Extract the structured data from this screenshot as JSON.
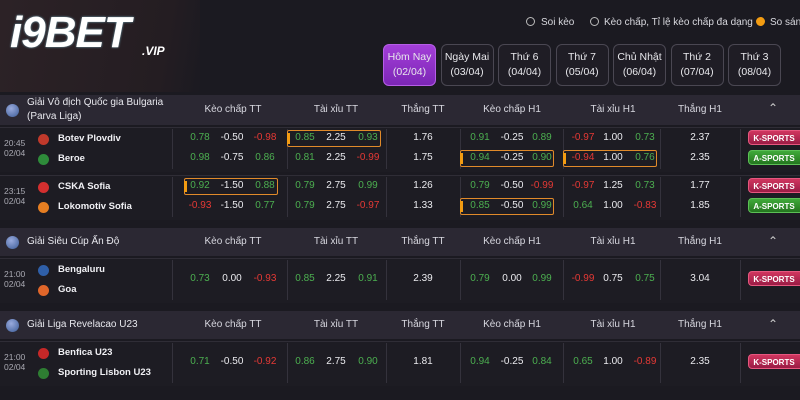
{
  "header": {
    "logo": "i9BET",
    "logo_suffix": ".VIP",
    "links": [
      "Soi kèo",
      "Kèo chấp, Tỉ lệ kèo chấp đa dạng",
      "So sánh"
    ]
  },
  "tabs": [
    {
      "label": "Hôm Nay",
      "date": "(02/04)",
      "active": true
    },
    {
      "label": "Ngày Mai",
      "date": "(03/04)"
    },
    {
      "label": "Thứ 6",
      "date": "(04/04)"
    },
    {
      "label": "Thứ 7",
      "date": "(05/04)"
    },
    {
      "label": "Chủ Nhật",
      "date": "(06/04)"
    },
    {
      "label": "Thứ 2",
      "date": "(07/04)"
    },
    {
      "label": "Thứ 3",
      "date": "(08/04)"
    }
  ],
  "leagues": [
    {
      "name": "Giải Vô địch Quốc gia Bulgaria (Parva Liga)",
      "columns": [
        "Kèo chấp TT",
        "Tài xỉu TT",
        "Thắng TT",
        "Kèo chấp H1",
        "Tài xỉu H1",
        "Thắng H1"
      ],
      "matches": [
        {
          "time": "20:45",
          "date": "02/04",
          "teams": [
            "Botev Plovdiv",
            "Beroe"
          ],
          "odds": [
            {
              "kc_tt": [
                "0.78",
                "-0.50",
                "-0.98"
              ],
              "tx_tt": [
                "0.85",
                "2.25",
                "0.93"
              ],
              "win_tt": "1.76",
              "kc_h1": [
                "0.91",
                "-0.25",
                "0.89"
              ],
              "tx_h1": [
                "-0.97",
                "1.00",
                "0.73"
              ],
              "win_h1": "2.37",
              "button": "K-SPORTS",
              "highlight": [
                "tx_tt"
              ]
            },
            {
              "kc_tt": [
                "0.98",
                "-0.75",
                "0.86"
              ],
              "tx_tt": [
                "0.81",
                "2.25",
                "-0.99"
              ],
              "win_tt": "1.75",
              "kc_h1": [
                "0.94",
                "-0.25",
                "0.90"
              ],
              "tx_h1": [
                "-0.94",
                "1.00",
                "0.76"
              ],
              "win_h1": "2.35",
              "button": "A-SPORTS",
              "highlight": [
                "kc_h1",
                "tx_h1"
              ]
            }
          ]
        },
        {
          "time": "23:15",
          "date": "02/04",
          "teams": [
            "CSKA Sofia",
            "Lokomotiv Sofia"
          ],
          "odds": [
            {
              "kc_tt": [
                "0.92",
                "-1.50",
                "0.88"
              ],
              "tx_tt": [
                "0.79",
                "2.75",
                "0.99"
              ],
              "win_tt": "1.26",
              "kc_h1": [
                "0.79",
                "-0.50",
                "-0.99"
              ],
              "tx_h1": [
                "-0.97",
                "1.25",
                "0.73"
              ],
              "win_h1": "1.77",
              "button": "K-SPORTS",
              "highlight": [
                "kc_tt"
              ]
            },
            {
              "kc_tt": [
                "-0.93",
                "-1.50",
                "0.77"
              ],
              "tx_tt": [
                "0.79",
                "2.75",
                "-0.97"
              ],
              "win_tt": "1.33",
              "kc_h1": [
                "0.85",
                "-0.50",
                "0.99"
              ],
              "tx_h1": [
                "0.64",
                "1.00",
                "-0.83"
              ],
              "win_h1": "1.85",
              "button": "A-SPORTS",
              "highlight": [
                "kc_h1"
              ]
            }
          ]
        }
      ]
    },
    {
      "name": "Giải Siêu Cúp Ấn Độ",
      "columns": [
        "Kèo chấp TT",
        "Tài xỉu TT",
        "Thắng TT",
        "Kèo chấp H1",
        "Tài xỉu H1",
        "Thắng H1"
      ],
      "matches": [
        {
          "time": "21:00",
          "date": "02/04",
          "teams": [
            "Bengaluru",
            "Goa"
          ],
          "odds": [
            {
              "kc_tt": [
                "0.73",
                "0.00",
                "-0.93"
              ],
              "tx_tt": [
                "0.85",
                "2.25",
                "0.91"
              ],
              "win_tt": "2.39",
              "kc_h1": [
                "0.79",
                "0.00",
                "0.99"
              ],
              "tx_h1": [
                "-0.99",
                "0.75",
                "0.75"
              ],
              "win_h1": "3.04",
              "button": "K-SPORTS",
              "highlight": []
            }
          ]
        }
      ]
    },
    {
      "name": "Giải Liga Revelacao U23",
      "columns": [
        "Kèo chấp TT",
        "Tài xỉu TT",
        "Thắng TT",
        "Kèo chấp H1",
        "Tài xỉu H1",
        "Thắng H1"
      ],
      "matches": [
        {
          "time": "21:00",
          "date": "02/04",
          "teams": [
            "Benfica U23",
            "Sporting Lisbon U23"
          ],
          "odds": [
            {
              "kc_tt": [
                "0.71",
                "-0.50",
                "-0.92"
              ],
              "tx_tt": [
                "0.86",
                "2.75",
                "0.90"
              ],
              "win_tt": "1.81",
              "kc_h1": [
                "0.94",
                "-0.25",
                "0.84"
              ],
              "tx_h1": [
                "0.65",
                "1.00",
                "-0.89"
              ],
              "win_h1": "2.35",
              "button": "K-SPORTS",
              "highlight": []
            }
          ]
        }
      ]
    }
  ]
}
